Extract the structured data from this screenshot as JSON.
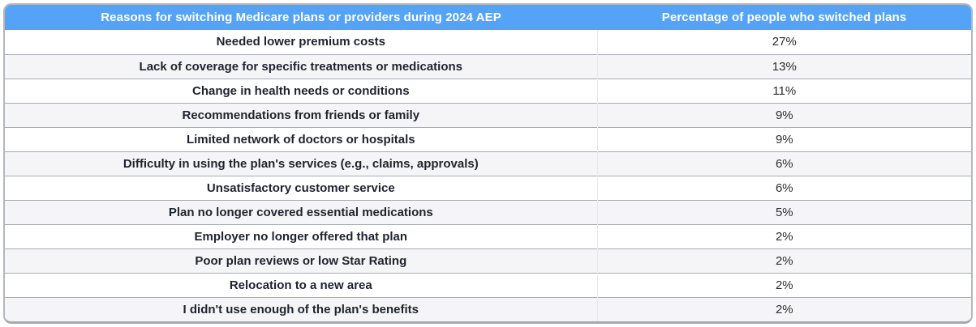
{
  "table": {
    "columns": [
      {
        "label": "Reasons for switching Medicare plans or providers during 2024 AEP"
      },
      {
        "label": "Percentage of people who switched plans"
      }
    ],
    "rows": [
      {
        "reason": "Needed lower premium costs",
        "percentage": "27%"
      },
      {
        "reason": "Lack of coverage for specific treatments or medications",
        "percentage": "13%"
      },
      {
        "reason": "Change in health needs or conditions",
        "percentage": "11%"
      },
      {
        "reason": "Recommendations from friends or family",
        "percentage": "9%"
      },
      {
        "reason": "Limited network of doctors or hospitals",
        "percentage": "9%"
      },
      {
        "reason": "Difficulty in using the plan's services (e.g., claims, approvals)",
        "percentage": "6%"
      },
      {
        "reason": "Unsatisfactory customer service",
        "percentage": "6%"
      },
      {
        "reason": "Plan no longer covered essential medications",
        "percentage": "5%"
      },
      {
        "reason": "Employer no longer offered that plan",
        "percentage": "2%"
      },
      {
        "reason": "Poor plan reviews or low Star Rating",
        "percentage": "2%"
      },
      {
        "reason": "Relocation to a new area",
        "percentage": "2%"
      },
      {
        "reason": "I didn't use enough of the plan's benefits",
        "percentage": "2%"
      }
    ]
  },
  "colors": {
    "header_bg": "#55a3f7",
    "header_text": "#ffffff",
    "row_alt_bg": "#f5f5f7",
    "row_border": "#a6aab2",
    "outer_border": "#b3b7c0",
    "reason_text": "#1e232e",
    "percent_text": "#2e2e2e"
  },
  "chart_data": {
    "type": "table",
    "title": "Reasons for switching Medicare plans or providers during 2024 AEP",
    "columns": [
      "Reasons for switching Medicare plans or providers during 2024 AEP",
      "Percentage of people who switched plans"
    ],
    "categories": [
      "Needed lower premium costs",
      "Lack of coverage for specific treatments or medications",
      "Change in health needs or conditions",
      "Recommendations from friends or family",
      "Limited network of doctors or hospitals",
      "Difficulty in using the plan's services (e.g., claims, approvals)",
      "Unsatisfactory customer service",
      "Plan no longer covered essential medications",
      "Employer no longer offered that plan",
      "Poor plan reviews or low Star Rating",
      "Relocation to a new area",
      "I didn't use enough of the plan's benefits"
    ],
    "values": [
      27,
      13,
      11,
      9,
      9,
      6,
      6,
      5,
      2,
      2,
      2,
      2
    ],
    "value_unit": "percent"
  }
}
